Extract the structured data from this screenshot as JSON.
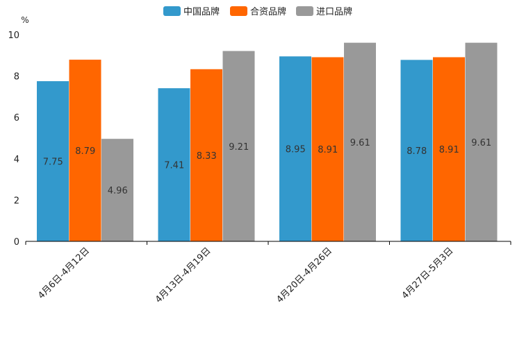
{
  "chart_data": {
    "type": "bar",
    "unit": "%",
    "categories": [
      "4月6日-4月12日",
      "4月13日-4月19日",
      "4月20日-4月26日",
      "4月27日-5月3日"
    ],
    "series": [
      {
        "name": "中国品牌",
        "color": "#3399cc",
        "values": [
          7.75,
          7.41,
          8.95,
          8.78
        ]
      },
      {
        "name": "合资品牌",
        "color": "#ff6600",
        "values": [
          8.79,
          8.33,
          8.91,
          8.91
        ]
      },
      {
        "name": "进口品牌",
        "color": "#999999",
        "values": [
          4.96,
          9.21,
          9.61,
          9.61
        ]
      }
    ],
    "value_labels": [
      [
        "7.75",
        "7.41",
        "8.95",
        "8.78"
      ],
      [
        "8.79",
        "8.33",
        "8.91",
        "8.91"
      ],
      [
        "4.96",
        "9.21",
        "9.61",
        "9.61"
      ]
    ],
    "yticks": [
      "0",
      "2",
      "4",
      "6",
      "8",
      "10"
    ],
    "ylim": [
      0,
      10
    ],
    "legend_position": "top-center",
    "grid": false
  }
}
